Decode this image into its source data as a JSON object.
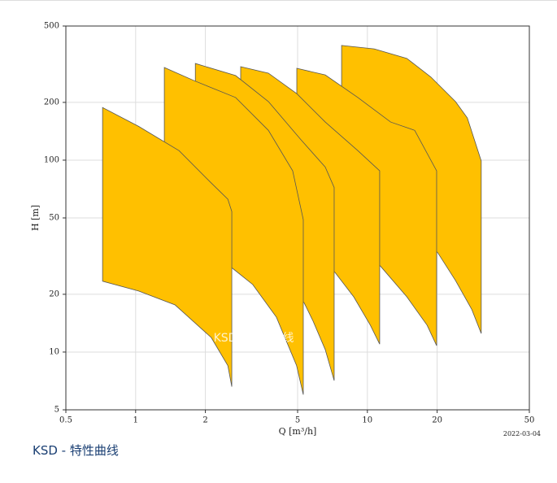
{
  "chart_data": {
    "type": "polygon",
    "x_label": "Q [m³/h]",
    "y_label": "H [m]",
    "date": "2022-03-04",
    "watermark": "KSD - 特性曲线",
    "caption": "KSD - 特性曲线",
    "xlog": true,
    "ylog": true,
    "grid": true,
    "color": "#ffc000",
    "edge_color": "#555555",
    "xlim": [
      0.5,
      50
    ],
    "xticks": [
      0.5,
      1,
      2,
      5,
      10,
      20,
      50
    ],
    "ylim": [
      5,
      500
    ],
    "yticks": [
      5,
      10,
      20,
      50,
      100,
      200,
      500
    ],
    "series": [
      {
        "x": [
          0.72,
          1.03,
          1.54,
          2.12,
          2.5,
          2.6,
          2.6,
          2.5,
          2.12,
          1.48,
          1.03,
          0.72
        ],
        "values": [
          188,
          150,
          112,
          76,
          62.6,
          54,
          6.6,
          8.5,
          11.9,
          17.6,
          20.8,
          23.4
        ]
      },
      {
        "x": [
          1.33,
          1.81,
          2.7,
          3.74,
          4.76,
          5.29,
          5.29,
          4.95,
          4.05,
          3.2,
          2.62,
          1.33
        ],
        "values": [
          304,
          258,
          212,
          143,
          88,
          49,
          6,
          8.5,
          15.2,
          22.5,
          27.3,
          40
        ]
      },
      {
        "x": [
          1.81,
          2.7,
          3.74,
          5.16,
          6.58,
          7.19,
          7.19,
          6.58,
          5.83,
          5.33,
          1.81
        ],
        "values": [
          319,
          276,
          202,
          128,
          92,
          72,
          7.1,
          10.3,
          14.5,
          18.1,
          37
        ]
      },
      {
        "x": [
          2.84,
          3.74,
          4.96,
          6.58,
          9.1,
          11.3,
          11.3,
          10.3,
          8.73,
          7.25,
          2.84
        ],
        "values": [
          307,
          284,
          222,
          158,
          112,
          88,
          11,
          13.8,
          19.4,
          26,
          49
        ]
      },
      {
        "x": [
          4.96,
          6.58,
          9.1,
          12.6,
          16,
          19.9,
          19.9,
          18.1,
          14.8,
          11.4,
          4.96
        ],
        "values": [
          301,
          278,
          212,
          158,
          143,
          88,
          10.8,
          13.8,
          19.4,
          28,
          66
        ]
      },
      {
        "x": [
          7.74,
          10.7,
          14.8,
          18.8,
          24,
          27,
          31,
          31,
          28.2,
          24,
          20.1,
          7.74
        ],
        "values": [
          396,
          380,
          339,
          271,
          202,
          166,
          99,
          12.5,
          16.7,
          23.6,
          33,
          84
        ]
      }
    ]
  }
}
